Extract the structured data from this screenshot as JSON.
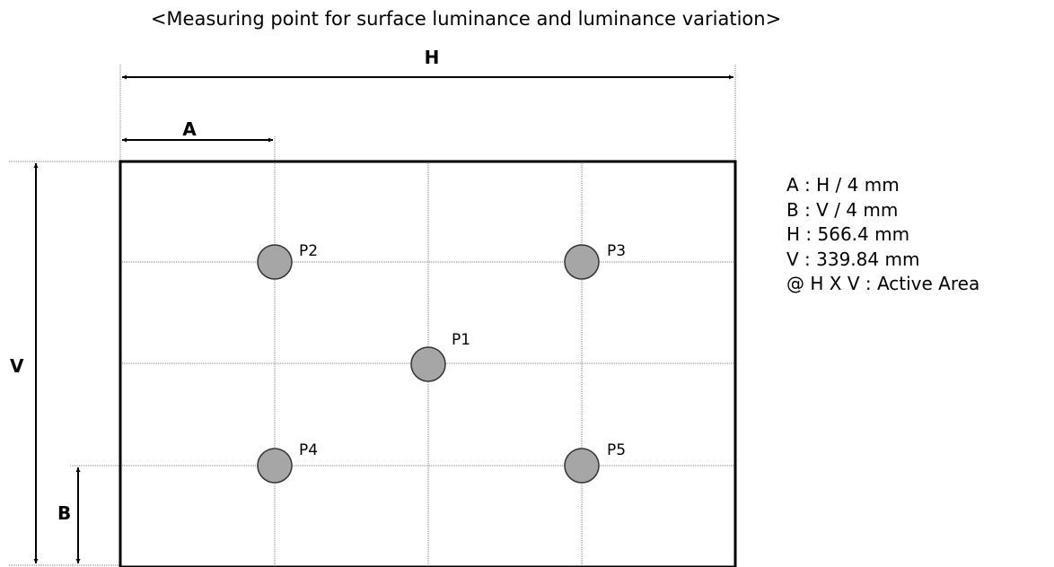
{
  "title": "<Measuring point for surface luminance and luminance variation>",
  "dimensions": {
    "h_label": "H",
    "a_label": "A",
    "v_label": "V",
    "b_label": "B"
  },
  "points": [
    {
      "id": "p1",
      "label": "P1"
    },
    {
      "id": "p2",
      "label": "P2"
    },
    {
      "id": "p3",
      "label": "P3"
    },
    {
      "id": "p4",
      "label": "P4"
    },
    {
      "id": "p5",
      "label": "P5"
    }
  ],
  "legend": [
    "A : H / 4 mm",
    "B : V / 4 mm",
    "H : 566.4 mm",
    "V : 339.84 mm",
    "@ H X V : Active Area"
  ],
  "colors": {
    "line": "#000000",
    "grid": "#7f7f7f",
    "point_fill": "#a6a6a6",
    "point_stroke": "#333333"
  }
}
